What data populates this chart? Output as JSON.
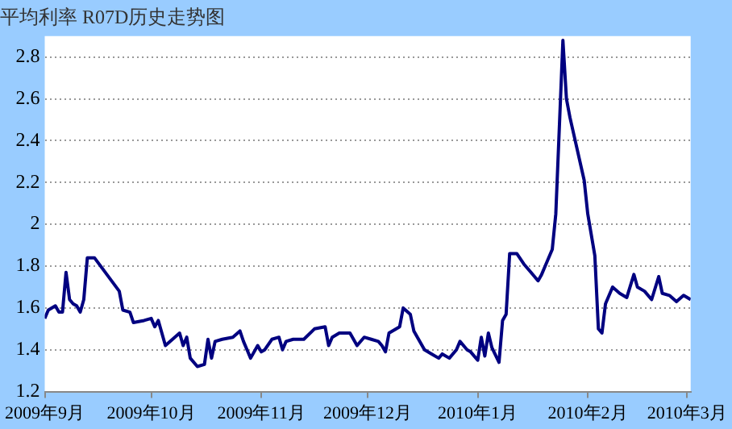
{
  "chart_data": {
    "type": "line",
    "title": "平均利率 R07D历史走势图",
    "color": "#000080",
    "grid": "y",
    "marker": "none",
    "line_style": "solid",
    "xlim": [
      "2009-09-01",
      "2010-03-02"
    ],
    "xticks": [
      {
        "value": "2009-09-01",
        "label": "2009年9月"
      },
      {
        "value": "2009-10-01",
        "label": "2009年10月"
      },
      {
        "value": "2009-11-01",
        "label": "2009年11月"
      },
      {
        "value": "2009-12-01",
        "label": "2009年12月"
      },
      {
        "value": "2010-01-01",
        "label": "2010年1月"
      },
      {
        "value": "2010-02-01",
        "label": "2010年2月"
      },
      {
        "value": "2010-03-01",
        "label": "2010年3月"
      }
    ],
    "ylim": [
      1.2,
      2.9
    ],
    "yticks": [
      1.2,
      1.4,
      1.6,
      1.8,
      2,
      2.2,
      2.4,
      2.6,
      2.8
    ],
    "x": [
      "2009-09-01",
      "2009-09-02",
      "2009-09-04",
      "2009-09-05",
      "2009-09-06",
      "2009-09-07",
      "2009-09-08",
      "2009-09-09",
      "2009-09-10",
      "2009-09-11",
      "2009-09-12",
      "2009-09-13",
      "2009-09-15",
      "2009-09-22",
      "2009-09-23",
      "2009-09-25",
      "2009-09-26",
      "2009-09-29",
      "2009-10-01",
      "2009-10-02",
      "2009-10-03",
      "2009-10-05",
      "2009-10-07",
      "2009-10-09",
      "2009-10-10",
      "2009-10-11",
      "2009-10-12",
      "2009-10-14",
      "2009-10-16",
      "2009-10-17",
      "2009-10-18",
      "2009-10-19",
      "2009-10-21",
      "2009-10-24",
      "2009-10-26",
      "2009-10-27",
      "2009-10-28",
      "2009-10-29",
      "2009-10-31",
      "2009-11-01",
      "2009-11-02",
      "2009-11-04",
      "2009-11-06",
      "2009-11-07",
      "2009-11-08",
      "2009-11-10",
      "2009-11-13",
      "2009-11-16",
      "2009-11-19",
      "2009-11-20",
      "2009-11-21",
      "2009-11-23",
      "2009-11-26",
      "2009-11-28",
      "2009-11-30",
      "2009-12-02",
      "2009-12-04",
      "2009-12-05",
      "2009-12-06",
      "2009-12-07",
      "2009-12-10",
      "2009-12-11",
      "2009-12-13",
      "2009-12-14",
      "2009-12-17",
      "2009-12-19",
      "2009-12-21",
      "2009-12-22",
      "2009-12-24",
      "2009-12-26",
      "2009-12-27",
      "2009-12-29",
      "2009-12-30",
      "2010-01-01",
      "2010-01-02",
      "2010-01-03",
      "2010-01-04",
      "2010-01-05",
      "2010-01-07",
      "2010-01-08",
      "2010-01-09",
      "2010-01-10",
      "2010-01-12",
      "2010-01-14",
      "2010-01-16",
      "2010-01-18",
      "2010-01-19",
      "2010-01-20",
      "2010-01-22",
      "2010-01-23",
      "2010-01-25",
      "2010-01-26",
      "2010-01-27",
      "2010-01-31",
      "2010-02-01",
      "2010-02-03",
      "2010-02-04",
      "2010-02-05",
      "2010-02-06",
      "2010-02-08",
      "2010-02-10",
      "2010-02-12",
      "2010-02-14",
      "2010-02-15",
      "2010-02-17",
      "2010-02-19",
      "2010-02-21",
      "2010-02-22",
      "2010-02-24",
      "2010-02-26",
      "2010-02-28",
      "2010-03-02"
    ],
    "values": [
      1.55,
      1.59,
      1.61,
      1.58,
      1.58,
      1.77,
      1.64,
      1.62,
      1.61,
      1.58,
      1.64,
      1.84,
      1.84,
      1.68,
      1.59,
      1.58,
      1.53,
      1.54,
      1.55,
      1.51,
      1.54,
      1.42,
      1.45,
      1.48,
      1.42,
      1.46,
      1.36,
      1.32,
      1.33,
      1.45,
      1.36,
      1.44,
      1.45,
      1.46,
      1.49,
      1.44,
      1.4,
      1.36,
      1.42,
      1.39,
      1.4,
      1.45,
      1.46,
      1.4,
      1.44,
      1.45,
      1.45,
      1.5,
      1.51,
      1.42,
      1.46,
      1.48,
      1.48,
      1.42,
      1.46,
      1.45,
      1.44,
      1.42,
      1.39,
      1.48,
      1.51,
      1.6,
      1.57,
      1.49,
      1.4,
      1.38,
      1.36,
      1.38,
      1.36,
      1.4,
      1.44,
      1.4,
      1.39,
      1.35,
      1.46,
      1.37,
      1.48,
      1.41,
      1.34,
      1.54,
      1.57,
      1.86,
      1.86,
      1.81,
      1.77,
      1.73,
      1.76,
      1.8,
      1.88,
      2.05,
      2.88,
      2.6,
      2.51,
      2.21,
      2.05,
      1.85,
      1.5,
      1.48,
      1.62,
      1.7,
      1.67,
      1.65,
      1.76,
      1.7,
      1.68,
      1.64,
      1.75,
      1.67,
      1.66,
      1.63,
      1.66,
      1.64
    ]
  }
}
